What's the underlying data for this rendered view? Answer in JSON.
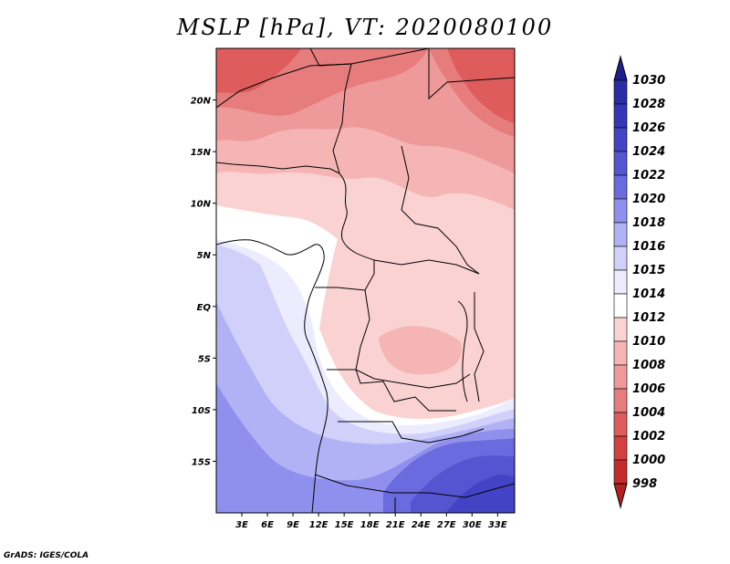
{
  "title": "MSLP [hPa], VT: 2020080100",
  "credit": "GrADS: IGES/COLA",
  "map": {
    "lon_range": [
      0,
      35
    ],
    "lat_range": [
      -20,
      25
    ],
    "lat_ticks": [
      {
        "value": 20,
        "label": "20N"
      },
      {
        "value": 15,
        "label": "15N"
      },
      {
        "value": 10,
        "label": "10N"
      },
      {
        "value": 5,
        "label": "5N"
      },
      {
        "value": 0,
        "label": "EQ"
      },
      {
        "value": -5,
        "label": "5S"
      },
      {
        "value": -10,
        "label": "10S"
      },
      {
        "value": -15,
        "label": "15S"
      }
    ],
    "lon_ticks": [
      {
        "value": 3,
        "label": "3E"
      },
      {
        "value": 6,
        "label": "6E"
      },
      {
        "value": 9,
        "label": "9E"
      },
      {
        "value": 12,
        "label": "12E"
      },
      {
        "value": 15,
        "label": "15E"
      },
      {
        "value": 18,
        "label": "18E"
      },
      {
        "value": 21,
        "label": "21E"
      },
      {
        "value": 24,
        "label": "24E"
      },
      {
        "value": 27,
        "label": "27E"
      },
      {
        "value": 30,
        "label": "30E"
      },
      {
        "value": 33,
        "label": "33E"
      }
    ]
  },
  "colorbar": {
    "levels": [
      {
        "label": "1030",
        "color": "#23238f"
      },
      {
        "label": "1028",
        "color": "#2c2ca6"
      },
      {
        "label": "1026",
        "color": "#3535b8"
      },
      {
        "label": "1024",
        "color": "#4343c6"
      },
      {
        "label": "1022",
        "color": "#5555d2"
      },
      {
        "label": "1020",
        "color": "#6b6be0"
      },
      {
        "label": "1018",
        "color": "#8f8fee"
      },
      {
        "label": "1016",
        "color": "#b1b1f5"
      },
      {
        "label": "1015",
        "color": "#d0d0fa"
      },
      {
        "label": "1014",
        "color": "#ececfe"
      },
      {
        "label": "1012",
        "color": "#ffffff"
      },
      {
        "label": "1010",
        "color": "#fbd2d2"
      },
      {
        "label": "1008",
        "color": "#f5b5b5"
      },
      {
        "label": "1006",
        "color": "#ee9a9a"
      },
      {
        "label": "1004",
        "color": "#e67c7c"
      },
      {
        "label": "1002",
        "color": "#de5c5c"
      },
      {
        "label": "1000",
        "color": "#d24040"
      },
      {
        "label": "998",
        "color": "#c42b2b"
      }
    ],
    "top_color": "#20208a",
    "bottom_color": "#b82020"
  }
}
